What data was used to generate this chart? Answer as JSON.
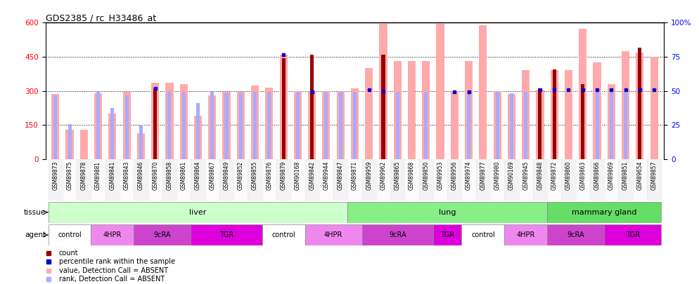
{
  "title": "GDS2385 / rc_H33486_at",
  "samples": [
    "GSM89873",
    "GSM89875",
    "GSM89878",
    "GSM89881",
    "GSM89841",
    "GSM89843",
    "GSM89846",
    "GSM89870",
    "GSM89858",
    "GSM89861",
    "GSM89864",
    "GSM89867",
    "GSM89849",
    "GSM89852",
    "GSM89855",
    "GSM89876",
    "GSM89879",
    "GSM90168",
    "GSM89842",
    "GSM89944",
    "GSM89847",
    "GSM89871",
    "GSM89959",
    "GSM89962",
    "GSM89865",
    "GSM89868",
    "GSM89850",
    "GSM89953",
    "GSM89956",
    "GSM89974",
    "GSM89877",
    "GSM89980",
    "GSM90169",
    "GSM89945",
    "GSM89848",
    "GSM89872",
    "GSM89860",
    "GSM89863",
    "GSM89866",
    "GSM89869",
    "GSM89851",
    "GSM89654",
    "GSM89857"
  ],
  "count": [
    null,
    null,
    null,
    null,
    null,
    null,
    null,
    310,
    null,
    null,
    null,
    null,
    null,
    null,
    null,
    null,
    445,
    null,
    460,
    null,
    null,
    null,
    null,
    460,
    null,
    null,
    null,
    null,
    null,
    null,
    null,
    null,
    null,
    null,
    310,
    395,
    null,
    330,
    null,
    null,
    null,
    490,
    null
  ],
  "value_absent": [
    285,
    130,
    130,
    290,
    200,
    295,
    115,
    335,
    335,
    330,
    190,
    280,
    295,
    295,
    325,
    315,
    460,
    300,
    295,
    300,
    300,
    310,
    400,
    595,
    430,
    430,
    430,
    595,
    300,
    430,
    590,
    300,
    285,
    390,
    305,
    390,
    390,
    575,
    425,
    330,
    475,
    470,
    450
  ],
  "percentile_rank": [
    null,
    null,
    null,
    null,
    null,
    null,
    null,
    310,
    null,
    null,
    null,
    null,
    null,
    null,
    null,
    null,
    460,
    null,
    295,
    null,
    null,
    null,
    305,
    300,
    null,
    null,
    null,
    null,
    295,
    295,
    null,
    null,
    null,
    null,
    305,
    305,
    305,
    305,
    305,
    305,
    305,
    305,
    305
  ],
  "rank_absent": [
    280,
    155,
    null,
    295,
    225,
    280,
    150,
    null,
    300,
    295,
    245,
    295,
    290,
    290,
    295,
    295,
    null,
    295,
    null,
    295,
    295,
    295,
    null,
    295,
    295,
    null,
    295,
    null,
    null,
    295,
    null,
    295,
    290,
    295,
    null,
    null,
    null,
    295,
    295,
    295,
    295,
    295,
    null
  ],
  "tissues": [
    {
      "label": "liver",
      "start": 0,
      "end": 21,
      "color": "#ccffcc"
    },
    {
      "label": "lung",
      "start": 21,
      "end": 35,
      "color": "#88ee88"
    },
    {
      "label": "mammary gland",
      "start": 35,
      "end": 43,
      "color": "#66dd66"
    }
  ],
  "agents": [
    {
      "label": "control",
      "start": 0,
      "end": 3
    },
    {
      "label": "4HPR",
      "start": 3,
      "end": 6
    },
    {
      "label": "9cRA",
      "start": 6,
      "end": 10
    },
    {
      "label": "TGR",
      "start": 10,
      "end": 15
    },
    {
      "label": "control",
      "start": 15,
      "end": 18
    },
    {
      "label": "4HPR",
      "start": 18,
      "end": 22
    },
    {
      "label": "9cRA",
      "start": 22,
      "end": 27
    },
    {
      "label": "TGR",
      "start": 27,
      "end": 29
    },
    {
      "label": "control",
      "start": 29,
      "end": 32
    },
    {
      "label": "4HPR",
      "start": 32,
      "end": 35
    },
    {
      "label": "9cRA",
      "start": 35,
      "end": 39
    },
    {
      "label": "TGR",
      "start": 39,
      "end": 43
    }
  ],
  "agent_colors": {
    "control": "#ffffff",
    "4HPR": "#ee88ee",
    "9cRA": "#cc44cc",
    "TGR": "#dd00dd"
  },
  "ylim_left": [
    0,
    600
  ],
  "ylim_right": [
    0,
    100
  ],
  "yticks_left": [
    0,
    150,
    300,
    450,
    600
  ],
  "yticks_right": [
    0,
    25,
    50,
    75,
    100
  ],
  "color_count": "#990000",
  "color_value_absent": "#ffaaaa",
  "color_percentile": "#0000cc",
  "color_rank_absent": "#aaaaff"
}
